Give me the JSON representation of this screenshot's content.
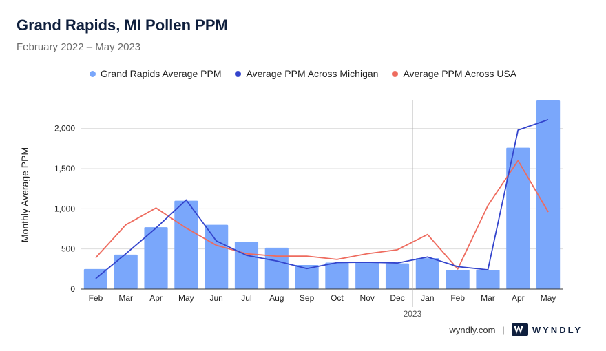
{
  "header": {
    "title": "Grand Rapids, MI Pollen PPM",
    "subtitle": "February 2022 – May 2023"
  },
  "footer": {
    "site": "wyndly.com",
    "separator": "|",
    "brand": "WYNDLY"
  },
  "colors": {
    "bars": "#7aa7fb",
    "michigan": "#3344cc",
    "usa": "#ee6b5e",
    "grid": "#dddddd",
    "divider": "#aaaaaa"
  },
  "chart_data": {
    "type": "bar",
    "title": "Grand Rapids, MI Pollen PPM",
    "subtitle": "February 2022 – May 2023",
    "xlabel": "",
    "ylabel": "Monthly Average PPM",
    "ylim": [
      0,
      2400
    ],
    "yticks": [
      0,
      500,
      1000,
      1500,
      2000
    ],
    "ytick_labels": [
      "0",
      "500",
      "1,000",
      "1,500",
      "2,000"
    ],
    "grid": true,
    "legend_position": "top-center",
    "year_marker": {
      "label": "2023",
      "before_category_index": 11
    },
    "categories": [
      "Feb",
      "Mar",
      "Apr",
      "May",
      "Jun",
      "Jul",
      "Aug",
      "Sep",
      "Oct",
      "Nov",
      "Dec",
      "Jan",
      "Feb",
      "Mar",
      "Apr",
      "May"
    ],
    "series": [
      {
        "name": "Grand Rapids Average PPM",
        "type": "bar",
        "values": [
          250,
          430,
          770,
          1100,
          800,
          590,
          515,
          300,
          330,
          335,
          320,
          385,
          240,
          240,
          1760,
          2350
        ]
      },
      {
        "name": "Average PPM Across Michigan",
        "type": "line",
        "values": [
          130,
          440,
          760,
          1110,
          600,
          420,
          350,
          255,
          330,
          335,
          325,
          400,
          280,
          240,
          1980,
          2110
        ]
      },
      {
        "name": "Average PPM Across USA",
        "type": "line",
        "values": [
          390,
          800,
          1010,
          760,
          545,
          440,
          410,
          410,
          370,
          440,
          490,
          680,
          250,
          1040,
          1600,
          960
        ]
      }
    ]
  }
}
